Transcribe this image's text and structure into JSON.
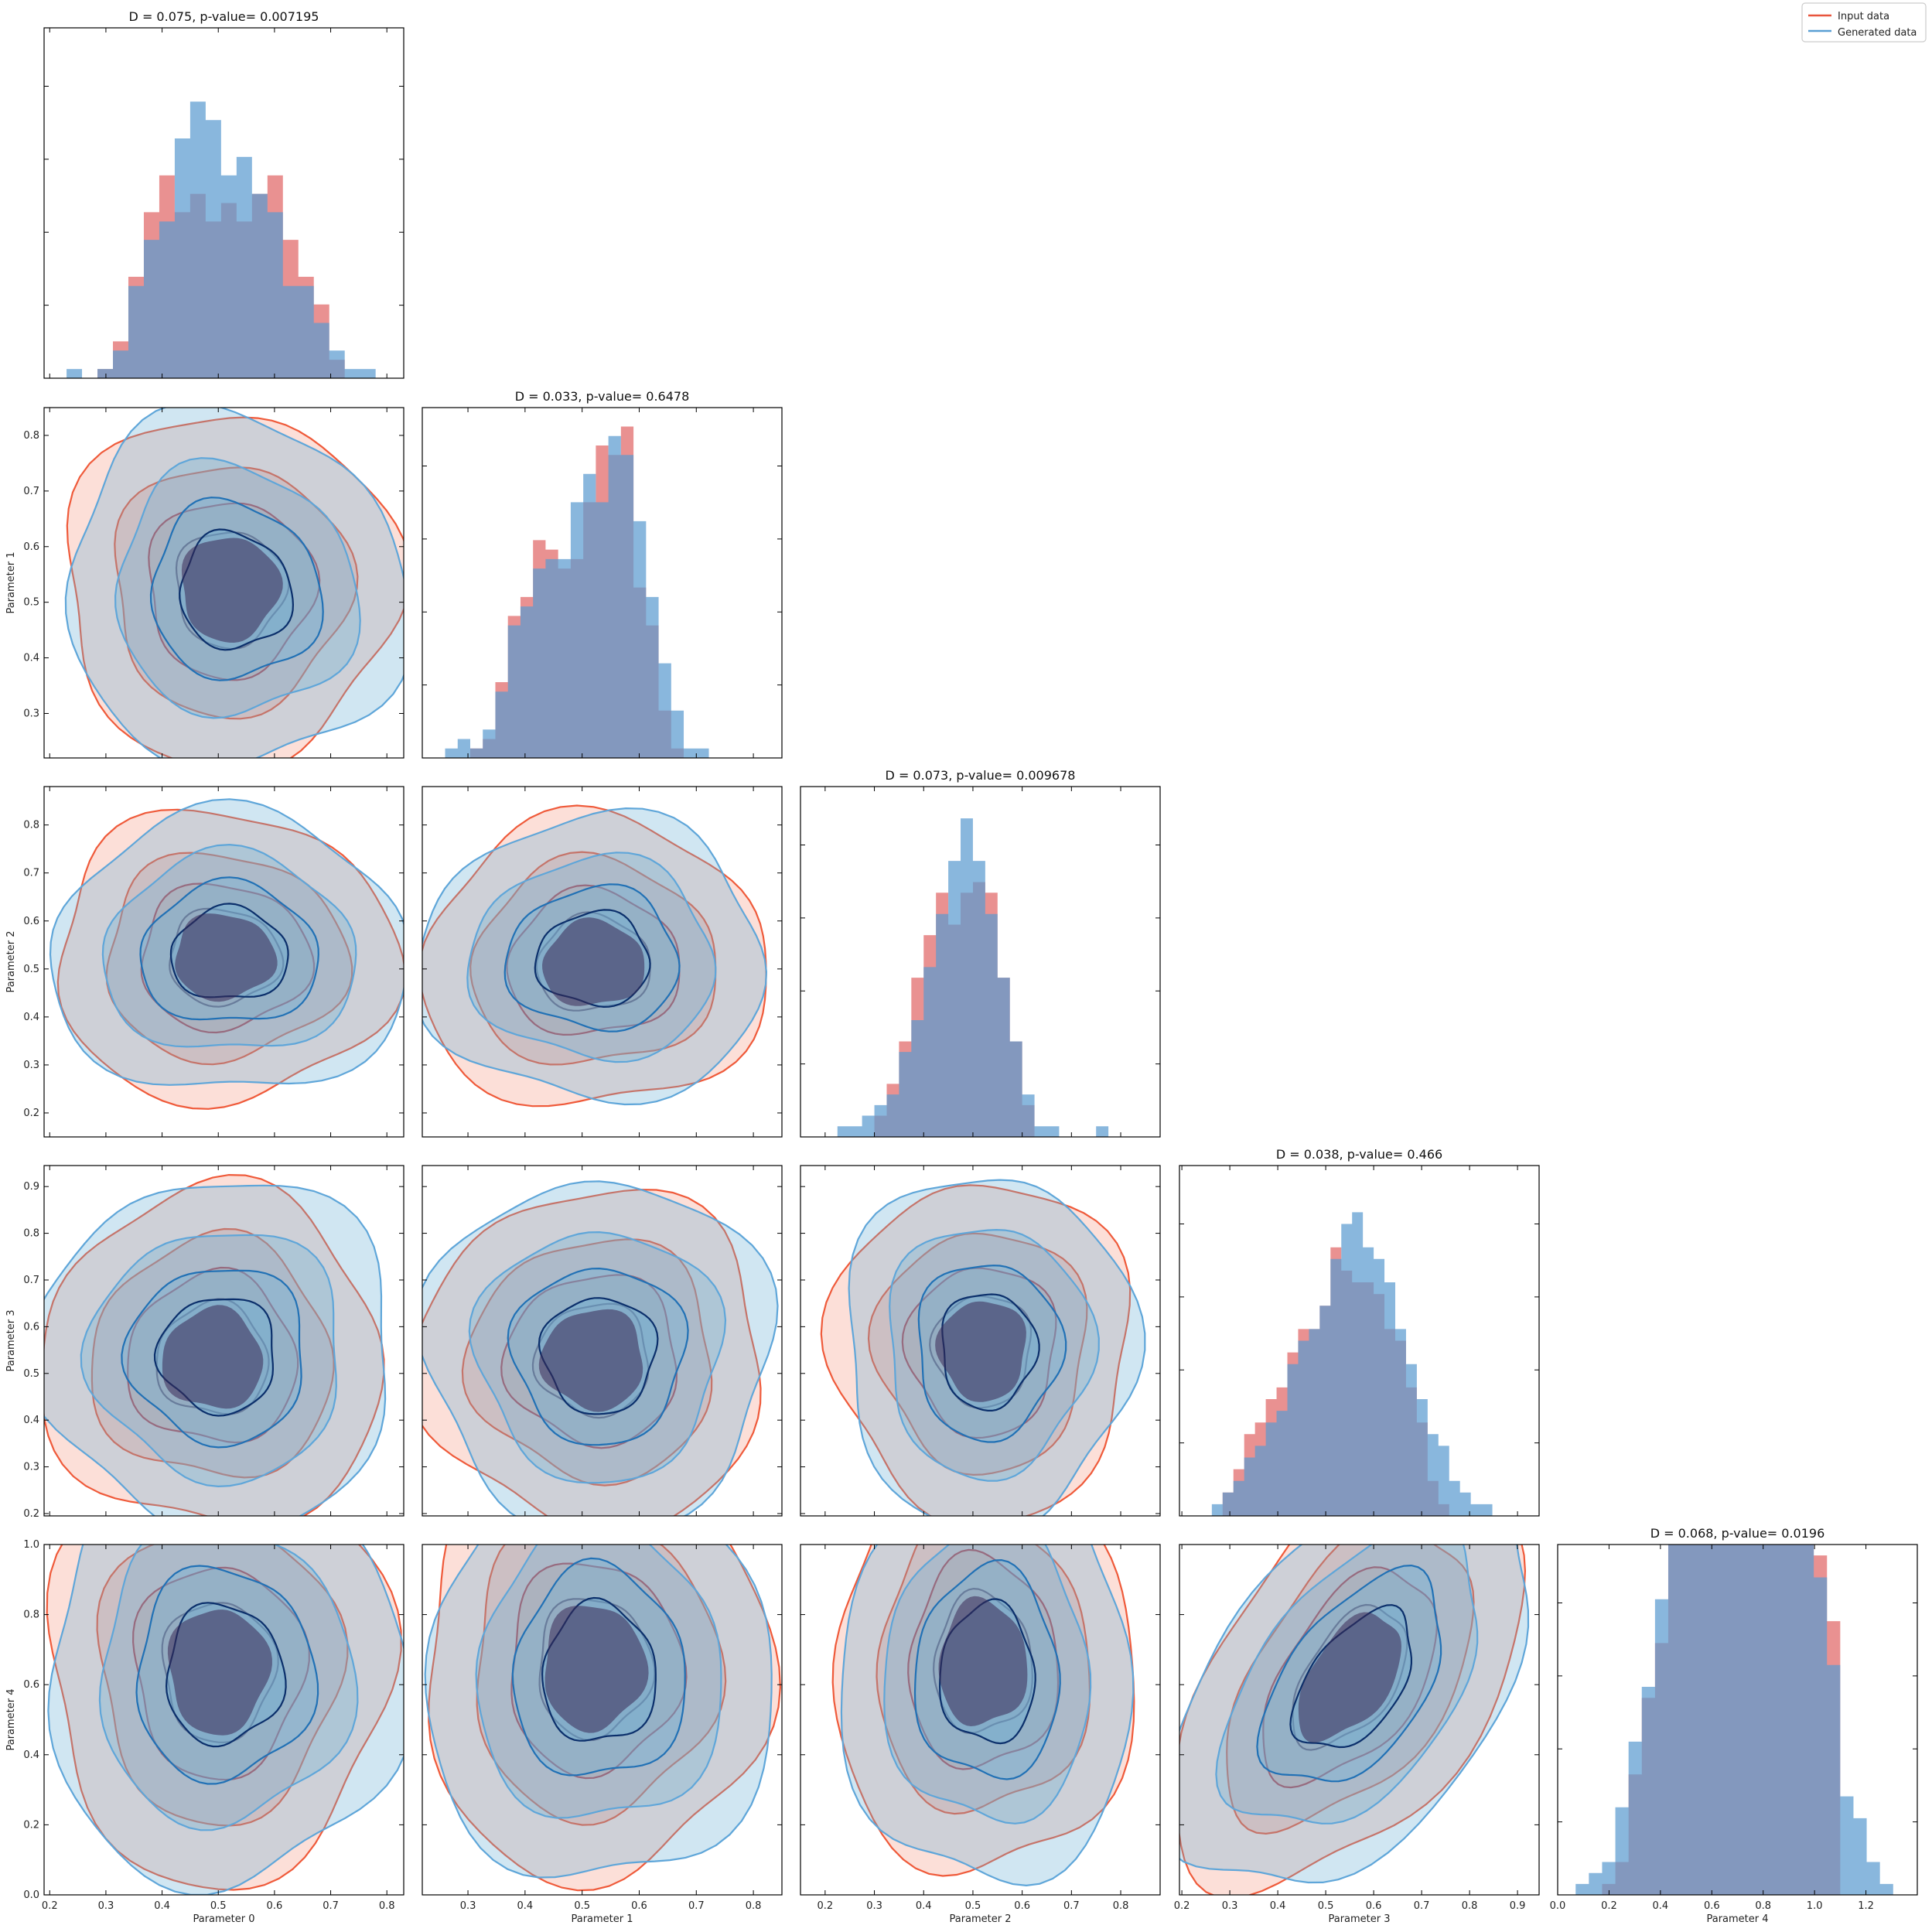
{
  "legend": {
    "entries": [
      {
        "label": "Input data",
        "color": "#e8553d"
      },
      {
        "label": "Generated data",
        "color": "#5a9fd4"
      }
    ],
    "placement": "top-right"
  },
  "colors": {
    "input_hist": "#e06666",
    "generated_hist": "#5b9bd0",
    "input_contour_fill": "#f58a6e",
    "generated_contour_fill": "#6aaed6",
    "input_line_outer": "#ef5a3a",
    "input_line_mid": "#cc1f1f",
    "input_line_inner": "#670d16",
    "gen_line_outer": "#5fa6d9",
    "gen_line_mid": "#2171b5",
    "gen_line_inner": "#0b2f6b"
  },
  "chart_data": {
    "type": "corner",
    "parameters": [
      "Parameter 0",
      "Parameter 1",
      "Parameter 2",
      "Parameter 3",
      "Parameter 4"
    ],
    "ranges": [
      [
        0.19,
        0.83
      ],
      [
        0.22,
        0.85
      ],
      [
        0.15,
        0.88
      ],
      [
        0.195,
        0.945
      ],
      [
        0.0,
        1.0
      ]
    ],
    "ticks": [
      [
        "0.2",
        "0.3",
        "0.4",
        "0.5",
        "0.6",
        "0.7",
        "0.8"
      ],
      [
        "0.3",
        "0.4",
        "0.5",
        "0.6",
        "0.7",
        "0.8"
      ],
      [
        "0.2",
        "0.3",
        "0.4",
        "0.5",
        "0.6",
        "0.7",
        "0.8"
      ],
      [
        "0.2",
        "0.3",
        "0.4",
        "0.5",
        "0.6",
        "0.7",
        "0.8",
        "0.9"
      ],
      [
        "0.0",
        "0.2",
        "0.4",
        "0.6",
        "0.8",
        "1.0",
        "1.2"
      ]
    ],
    "diag_x_ranges": [
      [
        0.19,
        0.83
      ],
      [
        0.22,
        0.85
      ],
      [
        0.15,
        0.88
      ],
      [
        0.195,
        0.945
      ],
      [
        0.0,
        1.4
      ]
    ],
    "diagonals": [
      {
        "title": "D = 0.075, p-value= 0.007195",
        "bin_start": 0.23,
        "bin_width": 0.0275,
        "input": [
          0,
          0,
          1,
          4,
          11,
          18,
          22,
          18,
          20,
          17,
          19,
          17,
          20,
          22,
          15,
          11,
          8,
          2,
          0,
          0,
          0,
          0
        ],
        "generated": [
          1,
          0,
          1,
          3,
          10,
          15,
          17,
          26,
          30,
          28,
          22,
          24,
          20,
          18,
          10,
          10,
          6,
          3,
          1,
          1,
          0,
          0
        ]
      },
      {
        "title": "D = 0.033, p-value= 0.6478",
        "bin_start": 0.26,
        "bin_width": 0.022,
        "input": [
          0,
          0,
          1,
          2,
          8,
          15,
          17,
          23,
          22,
          20,
          21,
          27,
          33,
          32,
          35,
          18,
          14,
          5,
          1,
          0,
          0,
          0,
          0
        ],
        "generated": [
          1,
          2,
          1,
          3,
          7,
          14,
          16,
          20,
          21,
          21,
          27,
          30,
          27,
          34,
          32,
          25,
          17,
          10,
          5,
          1,
          1,
          0,
          0
        ]
      },
      {
        "title": "D = 0.073, p-value= 0.009678",
        "bin_start": 0.2,
        "bin_width": 0.025,
        "input": [
          0,
          0,
          0,
          0,
          2,
          5,
          9,
          15,
          19,
          23,
          20,
          23,
          24,
          23,
          15,
          9,
          3,
          0,
          0,
          0,
          0,
          0,
          0,
          0
        ],
        "generated": [
          0,
          1,
          1,
          2,
          3,
          4,
          8,
          11,
          16,
          21,
          26,
          30,
          26,
          21,
          15,
          9,
          4,
          1,
          1,
          0,
          0,
          0,
          1,
          0
        ]
      },
      {
        "title": "D = 0.038, p-value= 0.466",
        "bin_start": 0.24,
        "bin_width": 0.0225,
        "input": [
          0,
          0,
          2,
          4,
          7,
          8,
          10,
          11,
          14,
          16,
          16,
          18,
          23,
          21,
          20,
          20,
          19,
          16,
          15,
          11,
          8,
          3,
          1,
          0,
          0,
          0,
          0,
          0,
          0,
          0,
          0
        ],
        "generated": [
          0,
          1,
          2,
          3,
          5,
          6,
          8,
          9,
          13,
          15,
          16,
          18,
          22,
          25,
          26,
          23,
          22,
          20,
          16,
          13,
          10,
          7,
          6,
          3,
          2,
          1,
          1,
          0,
          0,
          0,
          0
        ]
      },
      {
        "title": "D = 0.068, p-value= 0.0196",
        "bin_start": 0.07,
        "bin_width": 0.0515,
        "input": [
          0,
          0,
          1,
          3,
          11,
          18,
          23,
          33,
          43,
          52,
          61,
          65,
          63,
          62,
          57,
          51,
          49,
          41,
          31,
          25,
          0,
          0,
          0,
          0,
          0,
          0
        ],
        "generated": [
          1,
          2,
          3,
          8,
          14,
          19,
          27,
          35,
          41,
          49,
          55,
          59,
          63,
          62,
          58,
          53,
          46,
          38,
          29,
          21,
          9,
          7,
          3,
          1,
          0,
          0
        ]
      }
    ],
    "hist_ymax": [
      38,
      37,
      33,
      30,
      32
    ],
    "hist_visible_ymax": [
      38,
      37,
      33,
      30,
      32
    ],
    "contour_levels_cumulative": [
      0.99,
      0.9,
      0.68,
      0.39
    ],
    "contour_style": "filled KDE contours, overlaid for input (red) and generated (blue)",
    "pairs": [
      {
        "row": 1,
        "col": 0,
        "input": {
          "mean": [
            0.52,
            0.525
          ],
          "sd": [
            0.098,
            0.105
          ],
          "rho": 0.0
        },
        "generated": {
          "mean": [
            0.53,
            0.52
          ],
          "sd": [
            0.1,
            0.105
          ],
          "rho": -0.05
        }
      },
      {
        "row": 2,
        "col": 0,
        "input": {
          "mean": [
            0.51,
            0.525
          ],
          "sd": [
            0.1,
            0.1
          ],
          "rho": 0.0
        },
        "generated": {
          "mean": [
            0.52,
            0.53
          ],
          "sd": [
            0.105,
            0.097
          ],
          "rho": 0.0
        }
      },
      {
        "row": 2,
        "col": 1,
        "input": {
          "mean": [
            0.52,
            0.51
          ],
          "sd": [
            0.1,
            0.1
          ],
          "rho": 0.02
        },
        "generated": {
          "mean": [
            0.52,
            0.52
          ],
          "sd": [
            0.1,
            0.098
          ],
          "rho": 0.0
        }
      },
      {
        "row": 3,
        "col": 0,
        "input": {
          "mean": [
            0.49,
            0.53
          ],
          "sd": [
            0.1,
            0.12
          ],
          "rho": 0.0
        },
        "generated": {
          "mean": [
            0.5,
            0.54
          ],
          "sd": [
            0.105,
            0.125
          ],
          "rho": 0.0
        }
      },
      {
        "row": 3,
        "col": 1,
        "input": {
          "mean": [
            0.52,
            0.53
          ],
          "sd": [
            0.1,
            0.12
          ],
          "rho": 0.0
        },
        "generated": {
          "mean": [
            0.53,
            0.54
          ],
          "sd": [
            0.1,
            0.125
          ],
          "rho": 0.0
        }
      },
      {
        "row": 3,
        "col": 2,
        "input": {
          "mean": [
            0.52,
            0.55
          ],
          "sd": [
            0.1,
            0.12
          ],
          "rho": 0.0
        },
        "generated": {
          "mean": [
            0.53,
            0.55
          ],
          "sd": [
            0.097,
            0.125
          ],
          "rho": 0.0
        }
      },
      {
        "row": 4,
        "col": 0,
        "input": {
          "mean": [
            0.5,
            0.64
          ],
          "sd": [
            0.1,
            0.2
          ],
          "rho": 0.0
        },
        "generated": {
          "mean": [
            0.51,
            0.63
          ],
          "sd": [
            0.105,
            0.2
          ],
          "rho": 0.0
        }
      },
      {
        "row": 4,
        "col": 1,
        "input": {
          "mean": [
            0.52,
            0.65
          ],
          "sd": [
            0.1,
            0.2
          ],
          "rho": 0.0
        },
        "generated": {
          "mean": [
            0.53,
            0.63
          ],
          "sd": [
            0.1,
            0.2
          ],
          "rho": 0.0
        }
      },
      {
        "row": 4,
        "col": 2,
        "input": {
          "mean": [
            0.52,
            0.66
          ],
          "sd": [
            0.1,
            0.2
          ],
          "rho": 0.0
        },
        "generated": {
          "mean": [
            0.53,
            0.63
          ],
          "sd": [
            0.097,
            0.2
          ],
          "rho": 0.0
        }
      },
      {
        "row": 4,
        "col": 3,
        "input": {
          "mean": [
            0.55,
            0.62
          ],
          "sd": [
            0.12,
            0.2
          ],
          "rho": 0.5
        },
        "generated": {
          "mean": [
            0.56,
            0.61
          ],
          "sd": [
            0.125,
            0.2
          ],
          "rho": 0.5
        }
      }
    ],
    "grid": false
  }
}
